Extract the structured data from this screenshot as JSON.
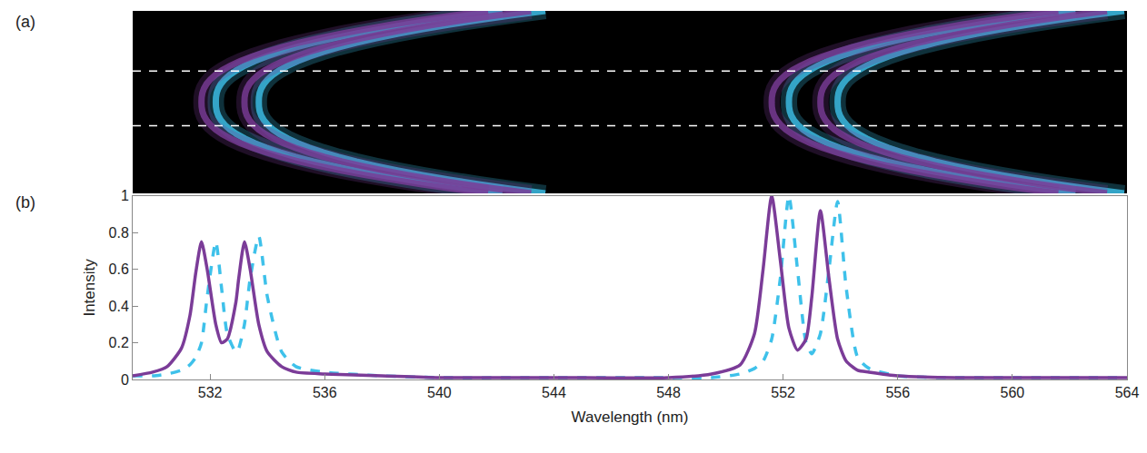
{
  "chart_data": {
    "type": "line",
    "annotations": [
      "(a)",
      "(b)"
    ],
    "x_label": "Wavelength (nm)",
    "y_label": "Intensity",
    "x": [
      529.3,
      530,
      530.5,
      531,
      531.3,
      531.5,
      531.7,
      531.9,
      532.2,
      532.4,
      532.6,
      532.9,
      533.0,
      533.2,
      533.4,
      533.7,
      534.0,
      534.5,
      535,
      536,
      538,
      540,
      544,
      548,
      549.5,
      550.5,
      551,
      551.3,
      551.6,
      551.9,
      552.2,
      552.5,
      552.8,
      553.0,
      553.3,
      553.6,
      553.9,
      554.2,
      554.6,
      555,
      556,
      558,
      560,
      564
    ],
    "series": [
      {
        "color": "#3ec1ea",
        "line_style": "dash",
        "values": [
          0.02,
          0.02,
          0.03,
          0.05,
          0.08,
          0.12,
          0.2,
          0.45,
          0.75,
          0.5,
          0.25,
          0.15,
          0.17,
          0.3,
          0.55,
          0.78,
          0.45,
          0.15,
          0.07,
          0.04,
          0.02,
          0.01,
          0.01,
          0.01,
          0.01,
          0.03,
          0.06,
          0.1,
          0.22,
          0.55,
          1.0,
          0.6,
          0.2,
          0.14,
          0.25,
          0.6,
          0.97,
          0.5,
          0.12,
          0.06,
          0.02,
          0.01,
          0.01,
          0.01
        ]
      },
      {
        "color": "#7b3c98",
        "line_style": "solid",
        "values": [
          0.02,
          0.04,
          0.07,
          0.17,
          0.35,
          0.58,
          0.75,
          0.6,
          0.3,
          0.2,
          0.22,
          0.42,
          0.55,
          0.75,
          0.6,
          0.3,
          0.15,
          0.07,
          0.04,
          0.03,
          0.02,
          0.01,
          0.01,
          0.01,
          0.03,
          0.08,
          0.25,
          0.6,
          1.0,
          0.65,
          0.28,
          0.16,
          0.22,
          0.45,
          0.92,
          0.55,
          0.22,
          0.1,
          0.05,
          0.04,
          0.02,
          0.01,
          0.01,
          0.01
        ]
      }
    ],
    "xlim": [
      529.3,
      564
    ],
    "xticks": [
      532,
      536,
      540,
      544,
      548,
      552,
      556,
      560,
      564
    ],
    "ylim": [
      0,
      1
    ],
    "yticks": [
      0,
      0.2,
      0.4,
      0.6,
      0.8,
      1
    ],
    "grid": false
  }
}
